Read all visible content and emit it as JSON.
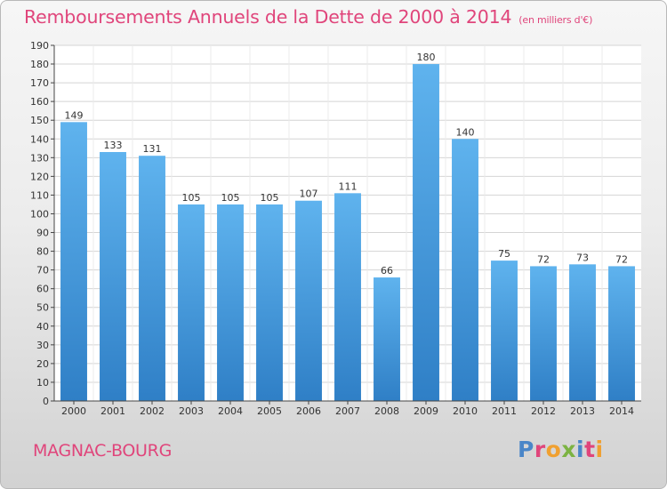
{
  "header": {
    "title": "Remboursements Annuels de la Dette de 2000 à 2014",
    "unit": "(en milliers d'€)"
  },
  "footer": {
    "city": "MAGNAC-BOURG",
    "logo_text": "Proxiti"
  },
  "colors": {
    "title": "#e0457b",
    "bar_top": "#5fb3ee",
    "bar_bottom": "#2f7fc6",
    "grid": "#d4d4d4"
  },
  "chart_data": {
    "type": "bar",
    "title": "Remboursements Annuels de la Dette de 2000 à 2014",
    "xlabel": "",
    "ylabel": "",
    "categories": [
      "2000",
      "2001",
      "2002",
      "2003",
      "2004",
      "2005",
      "2006",
      "2007",
      "2008",
      "2009",
      "2010",
      "2011",
      "2012",
      "2013",
      "2014"
    ],
    "values": [
      149,
      133,
      131,
      105,
      105,
      105,
      107,
      111,
      66,
      180,
      140,
      75,
      72,
      73,
      72
    ],
    "ylim": [
      0,
      190
    ],
    "ytick_step": 10,
    "grid": true,
    "data_labels": true
  }
}
